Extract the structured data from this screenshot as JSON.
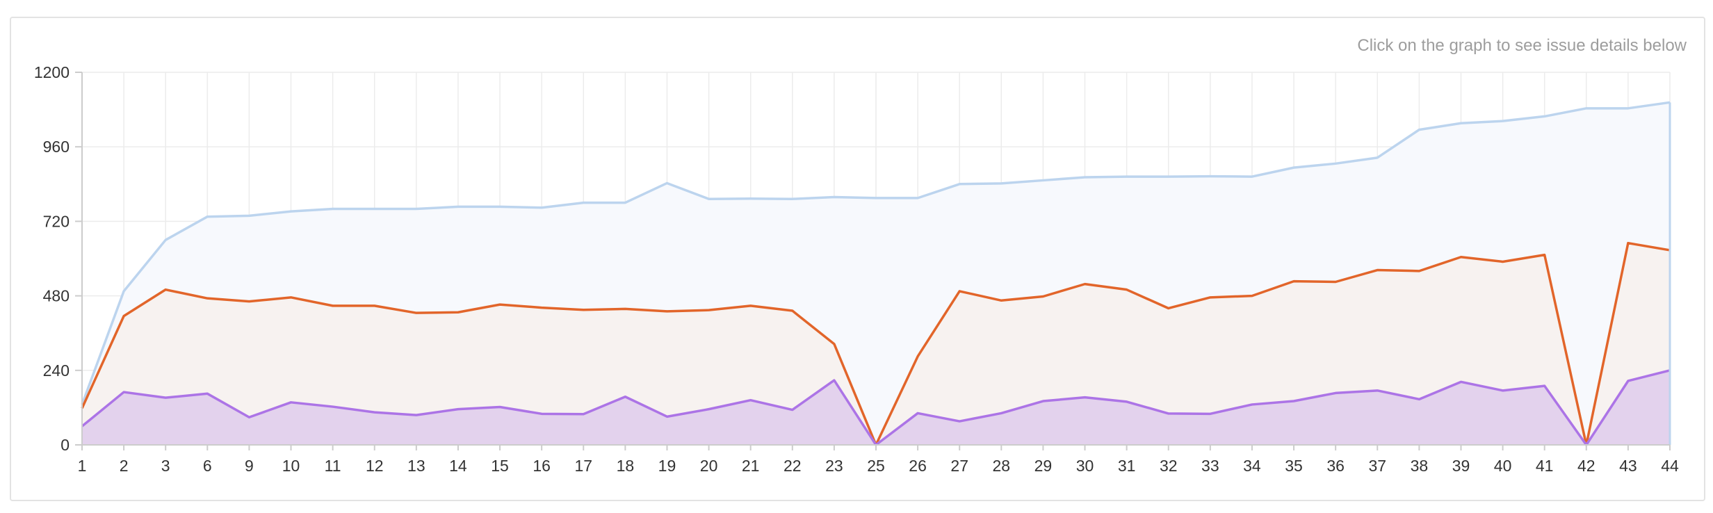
{
  "hint_text": "Click on the graph to see issue details below",
  "colors": {
    "blue_line": "#bcd4ee",
    "blue_fill": "#f7f9fd",
    "orange_line": "#e2652a",
    "orange_fill": "#f7f2f0",
    "purple_line": "#ac74e6",
    "purple_fill": "#e3d2ed",
    "grid": "#ececec",
    "axis": "#cccccc"
  },
  "chart_data": {
    "type": "area",
    "categories": [
      "1",
      "2",
      "3",
      "6",
      "9",
      "10",
      "11",
      "12",
      "13",
      "14",
      "15",
      "16",
      "17",
      "18",
      "19",
      "20",
      "21",
      "22",
      "23",
      "25",
      "26",
      "27",
      "28",
      "29",
      "30",
      "31",
      "32",
      "33",
      "34",
      "35",
      "36",
      "37",
      "38",
      "39",
      "40",
      "41",
      "42",
      "43",
      "44"
    ],
    "ylim": [
      0,
      1200
    ],
    "yticks": [
      0,
      240,
      480,
      720,
      960,
      1200
    ],
    "grid": true,
    "series": [
      {
        "color_key": "blue",
        "values": [
          130,
          495,
          660,
          735,
          738,
          752,
          760,
          760,
          760,
          767,
          767,
          764,
          780,
          780,
          843,
          792,
          793,
          792,
          798,
          795,
          795,
          840,
          842,
          852,
          862,
          864,
          864,
          865,
          864,
          893,
          906,
          925,
          1015,
          1036,
          1043,
          1058,
          1084,
          1084,
          1103
        ]
      },
      {
        "color_key": "orange",
        "values": [
          118,
          415,
          500,
          472,
          462,
          475,
          448,
          448,
          425,
          427,
          452,
          442,
          435,
          438,
          430,
          434,
          448,
          432,
          325,
          0,
          285,
          495,
          465,
          478,
          518,
          500,
          440,
          475,
          480,
          527,
          525,
          563,
          560,
          605,
          590,
          612,
          0,
          650,
          627
        ]
      },
      {
        "color_key": "purple",
        "values": [
          60,
          170,
          152,
          165,
          89,
          137,
          123,
          105,
          96,
          115,
          122,
          100,
          99,
          155,
          91,
          115,
          144,
          113,
          208,
          0,
          102,
          76,
          102,
          141,
          153,
          139,
          101,
          100,
          130,
          141,
          167,
          175,
          147,
          203,
          175,
          190,
          0,
          206,
          240
        ]
      }
    ]
  }
}
